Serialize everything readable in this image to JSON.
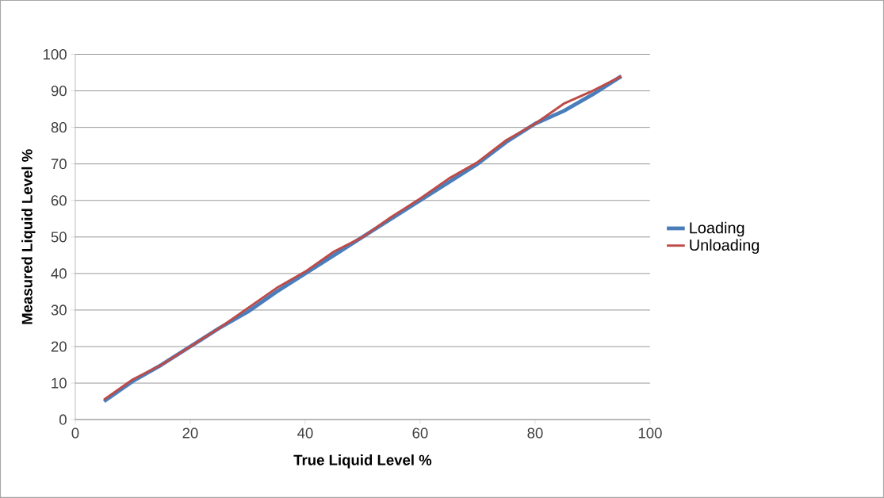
{
  "chart_data": {
    "type": "line",
    "xlabel": "True Liquid Level %",
    "ylabel": "Measured Liquid Level %",
    "x": [
      5,
      10,
      15,
      20,
      25,
      30,
      35,
      40,
      45,
      50,
      55,
      60,
      65,
      70,
      75,
      80,
      85,
      90,
      95
    ],
    "series": [
      {
        "name": "Loading",
        "color": "#4a7ebb",
        "values": [
          5,
          10.5,
          15,
          20,
          25,
          29.5,
          35,
          40,
          45,
          50,
          55,
          60,
          65,
          70,
          76,
          81,
          84.5,
          89,
          94
        ]
      },
      {
        "name": "Unloading",
        "color": "#be4b48",
        "values": [
          5.5,
          11,
          15,
          20,
          25,
          30.5,
          36,
          40.5,
          46,
          50,
          55.5,
          60.5,
          66,
          70.5,
          76.5,
          81,
          86.5,
          90,
          94
        ]
      }
    ],
    "xlim": [
      0,
      100
    ],
    "ylim": [
      0,
      100
    ],
    "xticks": [
      0,
      20,
      40,
      60,
      80,
      100
    ],
    "yticks": [
      0,
      10,
      20,
      30,
      40,
      50,
      60,
      70,
      80,
      90,
      100
    ],
    "grid": "y",
    "legend": "right",
    "marker": "none",
    "line_style": "solid"
  }
}
